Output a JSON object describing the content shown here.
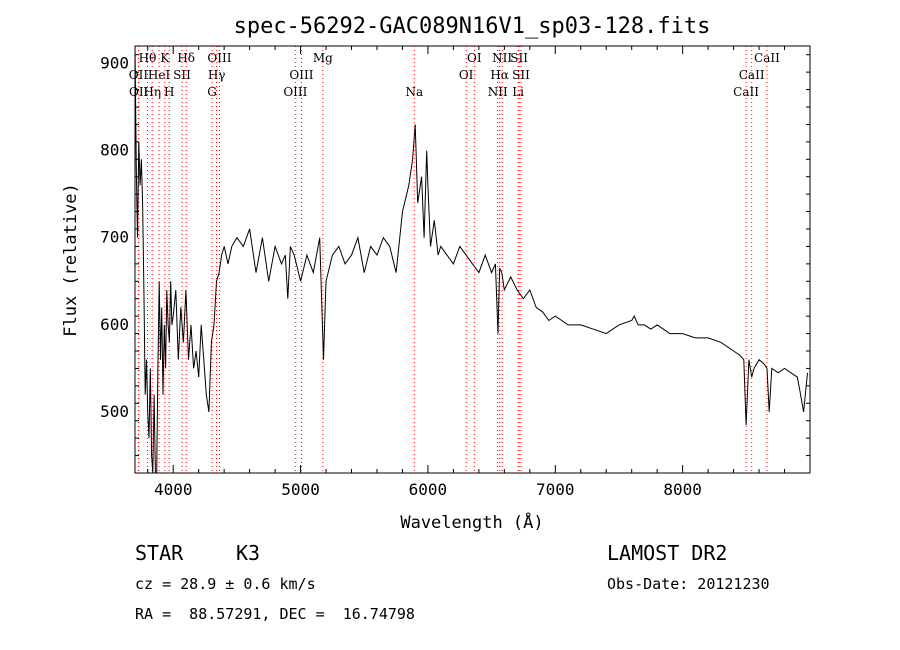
{
  "chart_data": {
    "type": "line",
    "title": "spec-56292-GAC089N16V1_sp03-128.fits",
    "xlabel": "Wavelength (Å)",
    "ylabel": "Flux (relative)",
    "xlim": [
      3700,
      9000
    ],
    "ylim": [
      430,
      920
    ],
    "x_ticks": [
      4000,
      5000,
      6000,
      7000,
      8000
    ],
    "y_ticks": [
      500,
      600,
      700,
      800,
      900
    ],
    "grid": false,
    "line_color": "#000000",
    "marker_color": "#ff0000",
    "spectral_lines": [
      {
        "label": "Hθ",
        "wavelength": 3798,
        "row": 0
      },
      {
        "label": "OII",
        "wavelength": 3727,
        "row": 1
      },
      {
        "label": "OII",
        "wavelength": 3729,
        "row": 2
      },
      {
        "label": "Hη",
        "wavelength": 3835,
        "row": 2
      },
      {
        "label": "K",
        "wavelength": 3934,
        "row": 0
      },
      {
        "label": "HeI",
        "wavelength": 3889,
        "row": 1
      },
      {
        "label": "SII",
        "wavelength": 4069,
        "row": 1
      },
      {
        "label": "H",
        "wavelength": 3969,
        "row": 2
      },
      {
        "label": "Hδ",
        "wavelength": 4102,
        "row": 0
      },
      {
        "label": "OIII",
        "wavelength": 4363,
        "row": 0
      },
      {
        "label": "Hγ",
        "wavelength": 4341,
        "row": 1
      },
      {
        "label": "G",
        "wavelength": 4305,
        "row": 2
      },
      {
        "label": "Mg",
        "wavelength": 5175,
        "row": 0
      },
      {
        "label": "OIII",
        "wavelength": 5007,
        "row": 1
      },
      {
        "label": "OIII",
        "wavelength": 4959,
        "row": 2
      },
      {
        "label": "Na",
        "wavelength": 5893,
        "row": 2
      },
      {
        "label": "OI",
        "wavelength": 6364,
        "row": 0
      },
      {
        "label": "OI",
        "wavelength": 6300,
        "row": 1
      },
      {
        "label": "NII",
        "wavelength": 6583,
        "row": 0
      },
      {
        "label": "SII",
        "wavelength": 6716,
        "row": 0
      },
      {
        "label": "Hα",
        "wavelength": 6563,
        "row": 1
      },
      {
        "label": "SII",
        "wavelength": 6731,
        "row": 1
      },
      {
        "label": "NII",
        "wavelength": 6548,
        "row": 2
      },
      {
        "label": "Li",
        "wavelength": 6708,
        "row": 2
      },
      {
        "label": "CaII",
        "wavelength": 8662,
        "row": 0
      },
      {
        "label": "CaII",
        "wavelength": 8542,
        "row": 1
      },
      {
        "label": "CaII",
        "wavelength": 8498,
        "row": 2
      }
    ],
    "series": [
      {
        "x": [
          3700,
          3710,
          3720,
          3730,
          3740,
          3750,
          3760,
          3770,
          3780,
          3790,
          3800,
          3810,
          3820,
          3830,
          3840,
          3850,
          3860,
          3870,
          3880,
          3890,
          3900,
          3910,
          3920,
          3930,
          3940,
          3950,
          3960,
          3970,
          3980,
          3990,
          4000,
          4020,
          4040,
          4060,
          4080,
          4100,
          4120,
          4140,
          4160,
          4180,
          4200,
          4220,
          4240,
          4260,
          4280,
          4300,
          4320,
          4340,
          4360,
          4380,
          4400,
          4430,
          4460,
          4500,
          4550,
          4600,
          4650,
          4700,
          4750,
          4800,
          4850,
          4880,
          4900,
          4920,
          4950,
          5000,
          5050,
          5100,
          5150,
          5180,
          5200,
          5250,
          5300,
          5350,
          5400,
          5450,
          5500,
          5550,
          5600,
          5650,
          5700,
          5750,
          5800,
          5850,
          5880,
          5900,
          5920,
          5950,
          5970,
          5990,
          6000,
          6020,
          6050,
          6080,
          6100,
          6150,
          6200,
          6250,
          6300,
          6350,
          6400,
          6450,
          6500,
          6530,
          6550,
          6563,
          6580,
          6600,
          6650,
          6700,
          6750,
          6800,
          6850,
          6900,
          6950,
          7000,
          7050,
          7100,
          7150,
          7200,
          7300,
          7400,
          7500,
          7600,
          7620,
          7650,
          7700,
          7750,
          7800,
          7900,
          8000,
          8100,
          8200,
          8300,
          8400,
          8450,
          8480,
          8498,
          8520,
          8542,
          8560,
          8600,
          8640,
          8662,
          8680,
          8700,
          8750,
          8800,
          8850,
          8900,
          8920,
          8950,
          8980
        ],
        "y": [
          920,
          780,
          700,
          810,
          760,
          790,
          740,
          640,
          520,
          560,
          500,
          470,
          550,
          450,
          430,
          520,
          430,
          430,
          550,
          650,
          560,
          620,
          520,
          600,
          550,
          640,
          600,
          580,
          650,
          600,
          610,
          640,
          560,
          620,
          580,
          640,
          560,
          600,
          550,
          570,
          540,
          600,
          560,
          520,
          500,
          580,
          600,
          650,
          660,
          680,
          690,
          670,
          690,
          700,
          690,
          710,
          660,
          700,
          650,
          690,
          670,
          680,
          630,
          690,
          680,
          650,
          680,
          660,
          700,
          560,
          650,
          680,
          690,
          670,
          680,
          700,
          660,
          690,
          680,
          700,
          690,
          660,
          730,
          760,
          790,
          830,
          740,
          770,
          700,
          800,
          760,
          690,
          720,
          680,
          690,
          680,
          670,
          690,
          680,
          670,
          660,
          680,
          660,
          670,
          590,
          665,
          660,
          640,
          655,
          640,
          630,
          640,
          620,
          615,
          605,
          610,
          605,
          600,
          600,
          600,
          595,
          590,
          600,
          605,
          610,
          600,
          600,
          595,
          600,
          590,
          590,
          585,
          585,
          580,
          570,
          565,
          560,
          485,
          560,
          540,
          550,
          560,
          555,
          550,
          500,
          550,
          545,
          550,
          545,
          540,
          525,
          500,
          545
        ]
      }
    ]
  },
  "info": {
    "object_class": "STAR",
    "subclass": "K3",
    "survey": "LAMOST DR2",
    "cz": "cz = 28.9 ± 0.6 km/s",
    "obs_date": "Obs-Date: 20121230",
    "coords": "RA =  88.57291, DEC =  16.74798"
  }
}
